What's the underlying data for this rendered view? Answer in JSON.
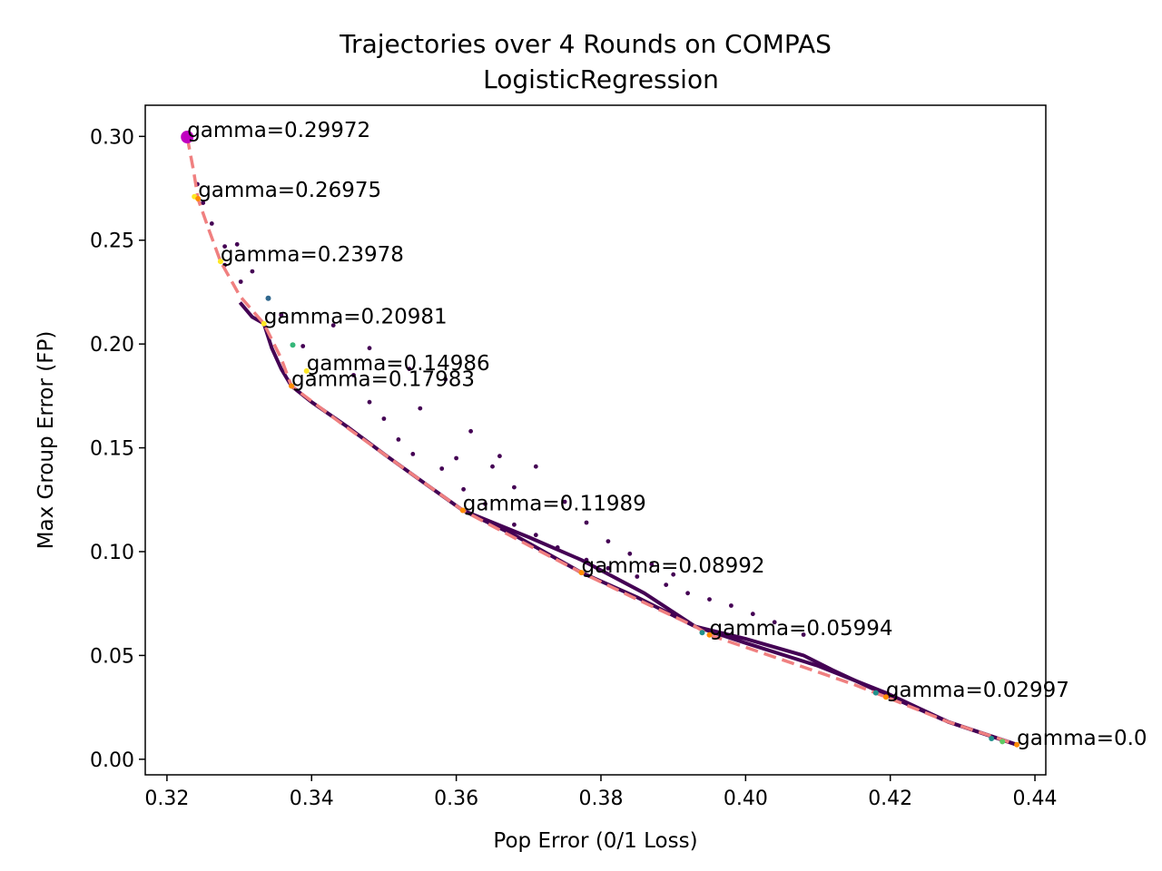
{
  "chart_data": {
    "type": "scatter",
    "title": "Trajectories over 4 Rounds on COMPAS",
    "subtitle": "LogisticRegression",
    "xlabel": "Pop Error (0/1 Loss)",
    "ylabel": "Max Group Error (FP)",
    "xlim": [
      0.317,
      0.4415
    ],
    "ylim": [
      -0.0075,
      0.315
    ],
    "xticks": [
      "0.32",
      "0.34",
      "0.36",
      "0.38",
      "0.40",
      "0.42",
      "0.44"
    ],
    "yticks": [
      "0.00",
      "0.05",
      "0.10",
      "0.15",
      "0.20",
      "0.25",
      "0.30"
    ],
    "grid": false,
    "pareto_frontier": {
      "color": "#f08080",
      "style": "dashed",
      "x": [
        0.3228,
        0.3237,
        0.3243,
        0.3258,
        0.3274,
        0.3301,
        0.3334,
        0.3358,
        0.3372,
        0.344,
        0.352,
        0.3609,
        0.37,
        0.3773,
        0.385,
        0.393,
        0.395,
        0.405,
        0.415,
        0.4194,
        0.428,
        0.435,
        0.4375
      ],
      "y": [
        0.2997,
        0.283,
        0.2698,
        0.255,
        0.2398,
        0.223,
        0.2098,
        0.193,
        0.1798,
        0.162,
        0.142,
        0.1199,
        0.103,
        0.0899,
        0.077,
        0.064,
        0.0599,
        0.048,
        0.036,
        0.03,
        0.018,
        0.01,
        0.007
      ]
    },
    "annotations": [
      {
        "label": "gamma=0.29972",
        "x": 0.3228,
        "y": 0.2997
      },
      {
        "label": "gamma=0.26975",
        "x": 0.3243,
        "y": 0.2708
      },
      {
        "label": "gamma=0.23978",
        "x": 0.3274,
        "y": 0.2398
      },
      {
        "label": "gamma=0.20981",
        "x": 0.3334,
        "y": 0.2098
      },
      {
        "label": "gamma=0.14986",
        "x": 0.3393,
        "y": 0.1875
      },
      {
        "label": "gamma=0.17983",
        "x": 0.3372,
        "y": 0.1798
      },
      {
        "label": "gamma=0.11989",
        "x": 0.3609,
        "y": 0.1199
      },
      {
        "label": "gamma=0.08992",
        "x": 0.3773,
        "y": 0.0899
      },
      {
        "label": "gamma=0.05994",
        "x": 0.395,
        "y": 0.0599
      },
      {
        "label": "gamma=0.02997",
        "x": 0.4194,
        "y": 0.03
      },
      {
        "label": "gamma=0.0",
        "x": 0.4375,
        "y": 0.007
      }
    ],
    "trajectories": {
      "color": "#440154",
      "dense": [
        {
          "x": [
            0.3372,
            0.34,
            0.345,
            0.35,
            0.356,
            0.3609,
            0.368,
            0.3773,
            0.385,
            0.393,
            0.4,
            0.41,
            0.4194,
            0.428,
            0.4375
          ],
          "y": [
            0.1798,
            0.172,
            0.16,
            0.147,
            0.132,
            0.1199,
            0.108,
            0.0899,
            0.078,
            0.064,
            0.056,
            0.045,
            0.032,
            0.018,
            0.007
          ]
        },
        {
          "x": [
            0.3609,
            0.37,
            0.3773,
            0.386,
            0.393,
            0.4,
            0.408,
            0.412,
            0.4194,
            0.428,
            0.4375
          ],
          "y": [
            0.1199,
            0.107,
            0.096,
            0.08,
            0.064,
            0.058,
            0.05,
            0.043,
            0.031,
            0.018,
            0.007
          ]
        },
        {
          "x": [
            0.3301,
            0.3318,
            0.3334,
            0.3345,
            0.3358,
            0.3372
          ],
          "y": [
            0.22,
            0.213,
            0.2098,
            0.198,
            0.188,
            0.1798
          ]
        }
      ],
      "sparse_points": [
        [
          0.3242,
          0.277
        ],
        [
          0.325,
          0.268
        ],
        [
          0.3262,
          0.258
        ],
        [
          0.328,
          0.247
        ],
        [
          0.3297,
          0.248
        ],
        [
          0.328,
          0.238
        ],
        [
          0.3302,
          0.23
        ],
        [
          0.3318,
          0.235
        ],
        [
          0.3358,
          0.214
        ],
        [
          0.3388,
          0.199
        ],
        [
          0.343,
          0.209
        ],
        [
          0.348,
          0.198
        ],
        [
          0.3458,
          0.185
        ],
        [
          0.348,
          0.172
        ],
        [
          0.35,
          0.164
        ],
        [
          0.352,
          0.154
        ],
        [
          0.354,
          0.147
        ],
        [
          0.358,
          0.14
        ],
        [
          0.361,
          0.13
        ],
        [
          0.364,
          0.123
        ],
        [
          0.368,
          0.113
        ],
        [
          0.371,
          0.108
        ],
        [
          0.374,
          0.102
        ],
        [
          0.378,
          0.096
        ],
        [
          0.381,
          0.092
        ],
        [
          0.385,
          0.088
        ],
        [
          0.389,
          0.084
        ],
        [
          0.392,
          0.08
        ],
        [
          0.395,
          0.077
        ],
        [
          0.398,
          0.074
        ],
        [
          0.401,
          0.07
        ],
        [
          0.404,
          0.066
        ],
        [
          0.408,
          0.06
        ],
        [
          0.3535,
          0.188
        ],
        [
          0.3585,
          0.183
        ],
        [
          0.362,
          0.158
        ],
        [
          0.365,
          0.141
        ],
        [
          0.368,
          0.131
        ],
        [
          0.355,
          0.169
        ],
        [
          0.36,
          0.145
        ],
        [
          0.366,
          0.146
        ],
        [
          0.371,
          0.141
        ],
        [
          0.375,
          0.124
        ],
        [
          0.378,
          0.114
        ],
        [
          0.381,
          0.105
        ],
        [
          0.384,
          0.099
        ],
        [
          0.387,
          0.094
        ],
        [
          0.39,
          0.089
        ]
      ]
    },
    "colored_points": [
      {
        "x": 0.334,
        "y": 0.222,
        "color": "#31688e"
      },
      {
        "x": 0.3374,
        "y": 0.1995,
        "color": "#35b779"
      },
      {
        "x": 0.3238,
        "y": 0.271,
        "color": "#fde725"
      },
      {
        "x": 0.3274,
        "y": 0.2398,
        "color": "#fde725"
      },
      {
        "x": 0.3334,
        "y": 0.2098,
        "color": "#fde725"
      },
      {
        "x": 0.3393,
        "y": 0.187,
        "color": "#fde725"
      },
      {
        "x": 0.3243,
        "y": 0.27,
        "color": "#ff8c00"
      },
      {
        "x": 0.3372,
        "y": 0.1798,
        "color": "#ff8c00"
      },
      {
        "x": 0.3609,
        "y": 0.1199,
        "color": "#ff8c00"
      },
      {
        "x": 0.3773,
        "y": 0.0899,
        "color": "#ff8c00"
      },
      {
        "x": 0.395,
        "y": 0.0599,
        "color": "#ff8c00"
      },
      {
        "x": 0.4194,
        "y": 0.03,
        "color": "#ff8c00"
      },
      {
        "x": 0.4375,
        "y": 0.007,
        "color": "#ff8c00"
      },
      {
        "x": 0.394,
        "y": 0.061,
        "color": "#21918c"
      },
      {
        "x": 0.418,
        "y": 0.032,
        "color": "#21918c"
      },
      {
        "x": 0.434,
        "y": 0.01,
        "color": "#21918c"
      },
      {
        "x": 0.4355,
        "y": 0.0085,
        "color": "#5ec962"
      }
    ],
    "start_point": {
      "x": 0.3228,
      "y": 0.2997,
      "color": "#c000c0"
    }
  }
}
